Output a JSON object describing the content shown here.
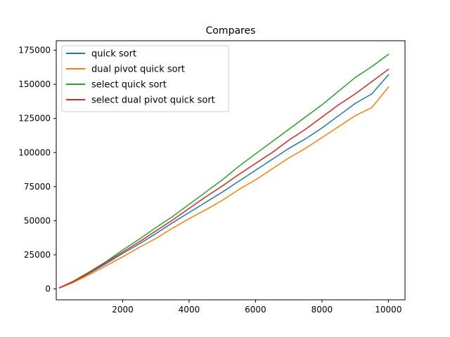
{
  "chart_data": {
    "type": "line",
    "title": "Compares",
    "xlabel": "",
    "ylabel": "",
    "xlim": [
      0,
      10500
    ],
    "ylim": [
      -8000,
      182000
    ],
    "xticks": [
      2000,
      4000,
      6000,
      8000,
      10000
    ],
    "xtick_labels": [
      "2000",
      "4000",
      "6000",
      "8000",
      "10000"
    ],
    "yticks": [
      0,
      25000,
      50000,
      75000,
      100000,
      125000,
      150000,
      175000
    ],
    "ytick_labels": [
      "0",
      "25000",
      "50000",
      "75000",
      "100000",
      "125000",
      "150000",
      "175000"
    ],
    "grid": false,
    "legend_position": "upper-left",
    "x": [
      100,
      500,
      1000,
      1500,
      2000,
      2500,
      3000,
      3500,
      4000,
      4500,
      5000,
      5500,
      6000,
      6500,
      7000,
      7500,
      8000,
      8500,
      9000,
      9500,
      10000
    ],
    "series": [
      {
        "name": "quick sort",
        "color": "#1f77b4",
        "values": [
          800,
          5000,
          11500,
          18500,
          26000,
          33000,
          40500,
          48500,
          56000,
          63500,
          71000,
          79000,
          87000,
          95000,
          103000,
          110000,
          118000,
          127000,
          136000,
          143000,
          157000
        ]
      },
      {
        "name": "dual pivot quick sort",
        "color": "#ff7f0e",
        "values": [
          700,
          4500,
          10500,
          17000,
          23500,
          30500,
          37000,
          44500,
          51500,
          58000,
          65000,
          73000,
          80000,
          88000,
          96000,
          103000,
          111000,
          119000,
          127000,
          133000,
          148000
        ]
      },
      {
        "name": "select quick sort",
        "color": "#2ca02c",
        "values": [
          900,
          5500,
          12500,
          20000,
          28500,
          36500,
          45000,
          53000,
          62000,
          71000,
          80000,
          90000,
          99000,
          108000,
          117000,
          126000,
          135000,
          145000,
          155000,
          163000,
          172000
        ]
      },
      {
        "name": "select dual pivot quick sort",
        "color": "#d62728",
        "values": [
          850,
          5200,
          12000,
          19500,
          27000,
          34500,
          42500,
          50500,
          59000,
          67500,
          75500,
          84000,
          92000,
          100000,
          109000,
          117000,
          126000,
          135000,
          143000,
          152000,
          161000
        ]
      }
    ]
  }
}
